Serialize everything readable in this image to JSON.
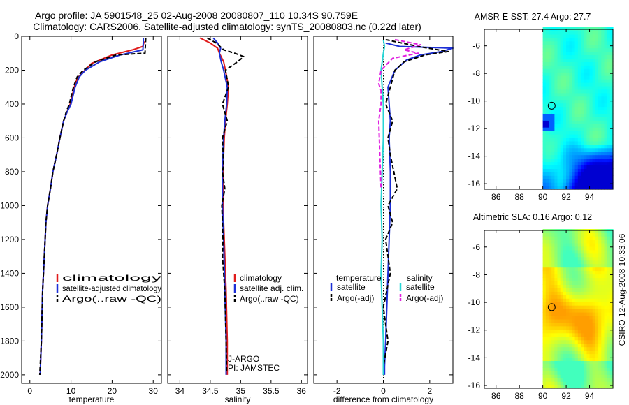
{
  "header": {
    "line1": "Argo profile: JA 5901548_25 02-Aug-2008 20080807_110 10.34S 90.759E",
    "line2": "Climatology: CARS2006. Satellite-adjusted climatology: synTS_20080803.nc (0.22d later)"
  },
  "credit": "CSIRO 12-Aug-2008 10:33:06",
  "colors": {
    "climatology": "#e01b1b",
    "satellite": "#1c2fd6",
    "argo": "#000000",
    "sat_salinity": "#28d6d6",
    "argo_salinity": "#e01ee0"
  },
  "chart_data": [
    {
      "type": "line",
      "id": "temperature",
      "xlabel": "temperature",
      "xlim": [
        -2,
        32
      ],
      "ylim": [
        0,
        2050
      ],
      "xticks": [
        0,
        10,
        20,
        30
      ],
      "yticks": [
        0,
        200,
        400,
        600,
        800,
        1000,
        1200,
        1400,
        1600,
        1800,
        2000
      ],
      "legend": [
        "climatology",
        "satellite-adjusted climatology",
        "Argo(..raw -QC)"
      ],
      "series": [
        {
          "name": "climatology",
          "color": "#e01b1b",
          "x": [
            27.8,
            27.5,
            25,
            20,
            15,
            13,
            11.5,
            10.8,
            9.8,
            9,
            8.2,
            7.3,
            6.5,
            5.6,
            5,
            4.3,
            3.9,
            3.5,
            3.1,
            2.8,
            2.5
          ],
          "y": [
            30,
            60,
            80,
            110,
            160,
            210,
            250,
            300,
            400,
            450,
            500,
            600,
            700,
            800,
            900,
            1000,
            1100,
            1300,
            1500,
            1800,
            2000
          ]
        },
        {
          "name": "satellite-adjusted climatology",
          "color": "#1c2fd6",
          "x": [
            27.6,
            27.6,
            27.5,
            22,
            17,
            13.5,
            12,
            11,
            10,
            9,
            8.2,
            7.3,
            6.5,
            5.6,
            5,
            4.3,
            3.9,
            3.5,
            3.1,
            2.8,
            2.5
          ],
          "y": [
            10,
            30,
            80,
            110,
            150,
            200,
            240,
            300,
            400,
            450,
            500,
            600,
            700,
            800,
            900,
            1000,
            1100,
            1300,
            1500,
            1800,
            2000
          ]
        },
        {
          "name": "Argo(..raw -QC)",
          "color": "#000000",
          "dash": true,
          "x": [
            28.2,
            28.1,
            28,
            21,
            16,
            13,
            11.5,
            10.6,
            9.6,
            8.8,
            8.2,
            7.3,
            6.5,
            5.6,
            5,
            4.3,
            3.9,
            3.5,
            3.1,
            2.8,
            2.4
          ],
          "y": [
            10,
            50,
            100,
            110,
            150,
            200,
            240,
            300,
            400,
            450,
            500,
            600,
            700,
            800,
            900,
            1000,
            1100,
            1300,
            1500,
            1800,
            2000
          ]
        }
      ]
    },
    {
      "type": "line",
      "id": "salinity",
      "xlabel": "salinity",
      "xlim": [
        33.8,
        36.1
      ],
      "ylim": [
        0,
        2050
      ],
      "xticks": [
        34,
        34.5,
        35,
        35.5,
        36
      ],
      "xtick_labels": [
        "34",
        "34.5",
        "35",
        "35.5",
        "36"
      ],
      "legend": [
        "climatology",
        "satellite adj. clim.",
        "Argo(..raw -QC)"
      ],
      "annotation": [
        "J-ARGO",
        "PI: JAMSTEC"
      ],
      "series": [
        {
          "name": "climatology",
          "color": "#e01b1b",
          "x": [
            34.33,
            34.5,
            34.62,
            34.65,
            34.72,
            34.75,
            34.8,
            34.78,
            34.75,
            34.73,
            34.72,
            34.71,
            34.71,
            34.73,
            34.76,
            34.78,
            34.78
          ],
          "y": [
            10,
            40,
            70,
            100,
            150,
            200,
            300,
            400,
            500,
            600,
            700,
            800,
            1000,
            1200,
            1500,
            1800,
            2000
          ]
        },
        {
          "name": "satellite adj. clim.",
          "color": "#1c2fd6",
          "x": [
            34.55,
            34.62,
            34.67,
            34.65,
            34.68,
            34.72,
            34.78,
            34.77,
            34.74,
            34.72,
            34.71,
            34.7,
            34.7,
            34.72,
            34.74,
            34.76,
            34.76
          ],
          "y": [
            10,
            40,
            70,
            100,
            150,
            200,
            300,
            400,
            500,
            600,
            700,
            800,
            1000,
            1200,
            1500,
            1800,
            2000
          ]
        },
        {
          "name": "Argo(..raw -QC)",
          "color": "#000000",
          "dash": true,
          "x": [
            34.45,
            34.6,
            34.72,
            34.9,
            35.05,
            34.95,
            34.75,
            34.8,
            34.7,
            34.78,
            34.7,
            34.72,
            34.7,
            34.74,
            34.69,
            34.71,
            34.7,
            34.74,
            34.76,
            34.77
          ],
          "y": [
            10,
            40,
            80,
            100,
            120,
            150,
            200,
            300,
            400,
            500,
            600,
            760,
            800,
            900,
            1000,
            1200,
            1300,
            1500,
            1800,
            1980
          ]
        }
      ]
    },
    {
      "type": "line",
      "id": "difference",
      "xlabel": "difference from climatology",
      "xlim": [
        -3,
        3
      ],
      "ylim": [
        0,
        2050
      ],
      "xticks": [
        -2,
        0,
        2
      ],
      "legend_groups": [
        {
          "title": "temperature",
          "entries": [
            "satellite",
            "Argo(-adj)"
          ]
        },
        {
          "title": "salinity",
          "entries": [
            "satellite",
            "Argo(-adj)"
          ]
        }
      ],
      "series": [
        {
          "name": "temperature satellite",
          "color": "#1c2fd6",
          "x": [
            0.1,
            0.7,
            3.0,
            2.5,
            1.6,
            1.0,
            0.5,
            0.2,
            0.25,
            0.3,
            0.25,
            0.3,
            0.3,
            0.25,
            0.2,
            0.15,
            0.1,
            0.05,
            0.05
          ],
          "y": [
            40,
            60,
            70,
            90,
            110,
            140,
            200,
            300,
            400,
            500,
            600,
            800,
            1000,
            1200,
            1400,
            1600,
            1800,
            1950,
            2000
          ]
        },
        {
          "name": "temperature Argo(-adj)",
          "color": "#000000",
          "dash": true,
          "x": [
            0.1,
            1.5,
            2.8,
            1.8,
            0.9,
            0.5,
            0.3,
            0.1,
            0.4,
            0.2,
            0.3,
            0.6,
            0.2,
            0.4,
            0.1,
            0.3,
            0.0,
            0.2,
            0.0,
            0.0
          ],
          "y": [
            20,
            60,
            90,
            110,
            150,
            200,
            300,
            400,
            500,
            600,
            700,
            900,
            1000,
            1100,
            1200,
            1400,
            1600,
            1800,
            1950,
            2000
          ]
        },
        {
          "name": "salinity satellite",
          "color": "#28d6d6",
          "x": [
            0.0,
            0.05,
            0.0,
            -0.1,
            -0.05,
            0.0,
            0.0,
            -0.05,
            -0.1,
            -0.05,
            -0.1,
            -0.05,
            0.0,
            0.0,
            0.0
          ],
          "y": [
            20,
            60,
            100,
            200,
            300,
            400,
            600,
            800,
            1000,
            1200,
            1400,
            1600,
            1800,
            1950,
            2000
          ]
        },
        {
          "name": "salinity Argo(-adj)",
          "color": "#e01ee0",
          "dash": true,
          "x": [
            0.5,
            1.6,
            0.9,
            1.5,
            0.4,
            -0.1,
            -0.2,
            -0.1,
            -0.1,
            -0.2,
            -0.15,
            -0.1
          ],
          "y": [
            20,
            50,
            80,
            100,
            130,
            200,
            280,
            320,
            400,
            500,
            700,
            900
          ]
        }
      ]
    },
    {
      "type": "heatmap",
      "id": "sst-map",
      "title": "AMSR-E SST: 27.4 Argo: 27.7",
      "xlim": [
        85,
        96
      ],
      "ylim": [
        -16.4,
        -4.8
      ],
      "xticks": [
        86,
        88,
        90,
        92,
        94
      ],
      "yticks": [
        -6,
        -8,
        -10,
        -12,
        -14,
        -16
      ],
      "data_extent_lon": [
        90,
        96
      ],
      "argo_position": {
        "lon": 90.759,
        "lat": -10.34
      }
    },
    {
      "type": "heatmap",
      "id": "sla-map",
      "title": "Altimetric SLA: 0.16 Argo: 0.12",
      "xlim": [
        85,
        96
      ],
      "ylim": [
        -16.2,
        -4.8
      ],
      "xticks": [
        86,
        88,
        90,
        92,
        94
      ],
      "yticks": [
        -6,
        -8,
        -10,
        -12,
        -14,
        -16
      ],
      "data_extent_lon": [
        90,
        96
      ],
      "argo_position": {
        "lon": 90.759,
        "lat": -10.34
      }
    }
  ]
}
